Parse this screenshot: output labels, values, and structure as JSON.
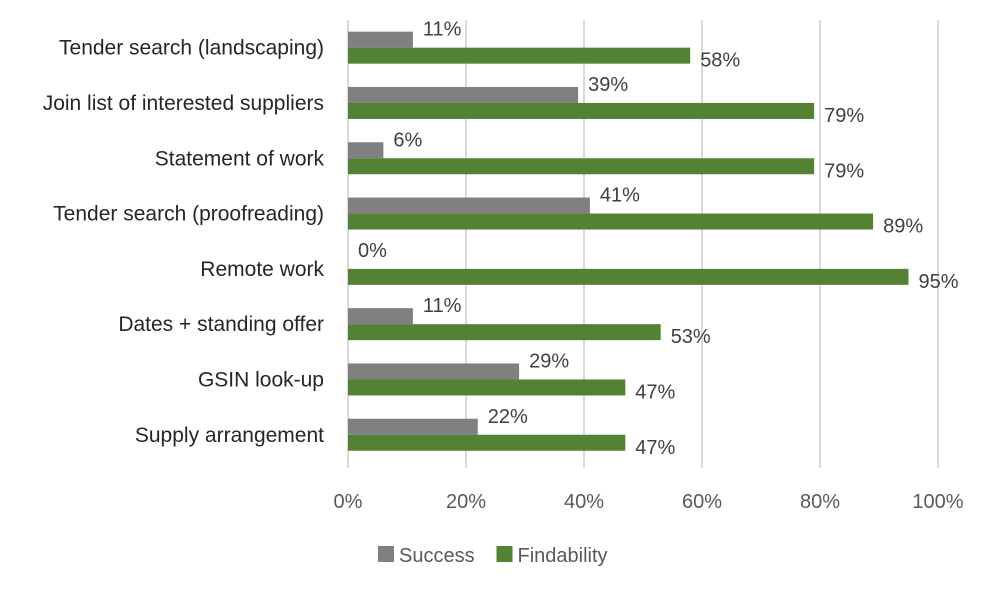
{
  "chart_data": {
    "type": "bar",
    "orientation": "horizontal",
    "categories": [
      "Tender search (landscaping)",
      "Join list of interested suppliers",
      "Statement of work",
      "Tender search (proofreading)",
      "Remote work",
      "Dates + standing offer",
      "GSIN look-up",
      "Supply arrangement"
    ],
    "series": [
      {
        "name": "Success",
        "color": "#808080",
        "values": [
          11,
          39,
          6,
          41,
          0,
          11,
          29,
          22
        ]
      },
      {
        "name": "Findability",
        "color": "#548235",
        "values": [
          58,
          79,
          79,
          89,
          95,
          53,
          47,
          47
        ]
      }
    ],
    "value_suffix": "%",
    "xlim": [
      0,
      100
    ],
    "xticks": [
      0,
      20,
      40,
      60,
      80,
      100
    ],
    "xtick_labels": [
      "0%",
      "20%",
      "40%",
      "60%",
      "80%",
      "100%"
    ],
    "grid": true,
    "legend": "bottom",
    "title": "",
    "xlabel": "",
    "ylabel": ""
  }
}
